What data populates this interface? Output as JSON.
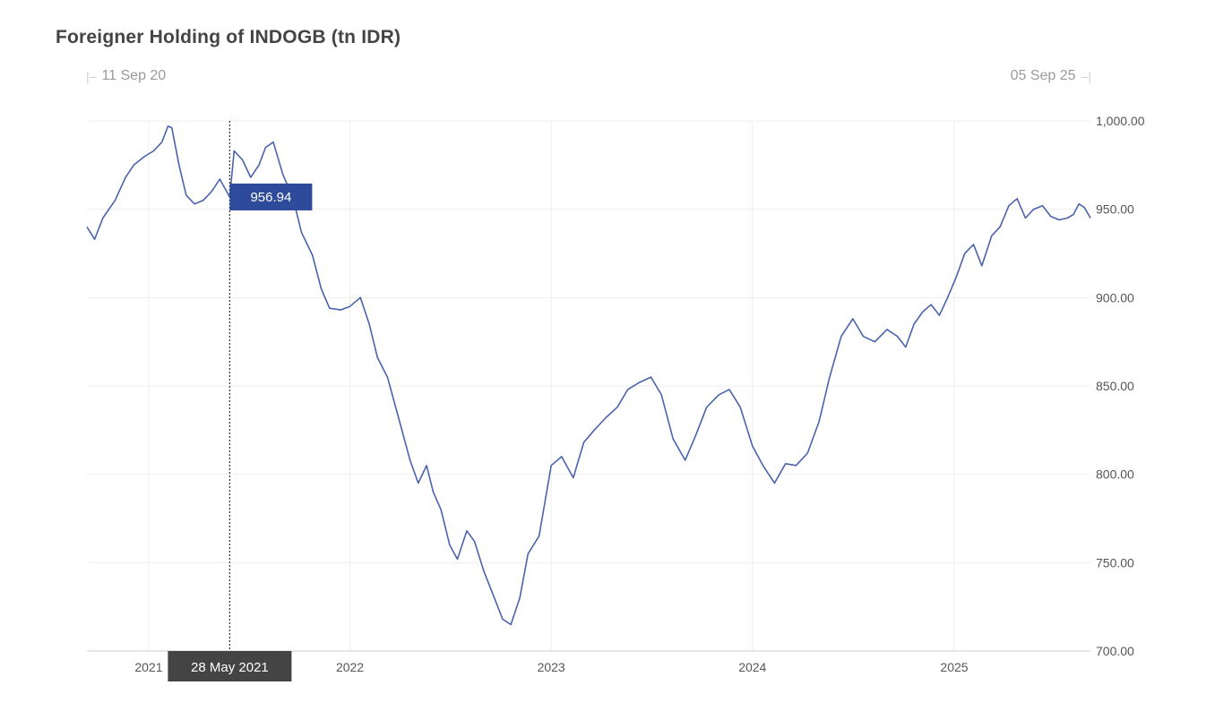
{
  "title": "Foreigner Holding of INDOGB (tn IDR)",
  "range_selector": {
    "start_label": "11 Sep 20",
    "end_label": "05 Sep 25"
  },
  "tooltip": {
    "value_label": "956.94",
    "date_label": "28 May 2021",
    "date_value": "2021-05-28"
  },
  "colors": {
    "line": "#4a63ad",
    "tooltip_value_bg": "#2d4b9a",
    "tooltip_date_bg": "#444444",
    "grid": "#eeeeee",
    "axis_text": "#555555"
  },
  "chart_data": {
    "type": "line",
    "title": "Foreigner Holding of INDOGB (tn IDR)",
    "xlabel": "",
    "ylabel": "",
    "ylim": [
      700,
      1000
    ],
    "y_ticks": [
      "1,000.00",
      "950.00",
      "900.00",
      "850.00",
      "800.00",
      "750.00",
      "700.00"
    ],
    "y_tick_values": [
      1000,
      950,
      900,
      850,
      800,
      750,
      700
    ],
    "x_range": [
      "2020-09-11",
      "2025-09-05"
    ],
    "x_ticks": [
      {
        "label": "2021",
        "date": "2021-01-01"
      },
      {
        "label": "2022",
        "date": "2022-01-01"
      },
      {
        "label": "2023",
        "date": "2023-01-01"
      },
      {
        "label": "2024",
        "date": "2024-01-01"
      },
      {
        "label": "2025",
        "date": "2025-01-01"
      }
    ],
    "grid": true,
    "y_axis_position": "right",
    "series": [
      {
        "x": [
          "2020-09-11",
          "2020-09-25",
          "2020-10-10",
          "2020-11-01",
          "2020-11-20",
          "2020-12-05",
          "2020-12-25",
          "2021-01-10",
          "2021-01-25",
          "2021-02-05",
          "2021-02-12",
          "2021-02-25",
          "2021-03-10",
          "2021-03-25",
          "2021-04-10",
          "2021-04-25",
          "2021-05-10",
          "2021-05-28",
          "2021-06-05",
          "2021-06-20",
          "2021-07-05",
          "2021-07-20",
          "2021-08-01",
          "2021-08-15",
          "2021-09-01",
          "2021-09-20",
          "2021-10-05",
          "2021-10-25",
          "2021-11-10",
          "2021-11-25",
          "2021-12-15",
          "2022-01-01",
          "2022-01-20",
          "2022-02-05",
          "2022-02-20",
          "2022-03-10",
          "2022-04-01",
          "2022-04-20",
          "2022-05-05",
          "2022-05-20",
          "2022-06-01",
          "2022-06-15",
          "2022-07-01",
          "2022-07-15",
          "2022-08-01",
          "2022-08-15",
          "2022-09-01",
          "2022-09-20",
          "2022-10-05",
          "2022-10-20",
          "2022-11-05",
          "2022-11-20",
          "2022-12-10",
          "2023-01-01",
          "2023-01-20",
          "2023-02-10",
          "2023-03-01",
          "2023-03-20",
          "2023-04-10",
          "2023-05-01",
          "2023-05-20",
          "2023-06-10",
          "2023-07-01",
          "2023-07-20",
          "2023-08-10",
          "2023-09-01",
          "2023-09-20",
          "2023-10-10",
          "2023-11-01",
          "2023-11-20",
          "2023-12-10",
          "2024-01-01",
          "2024-01-20",
          "2024-02-10",
          "2024-03-01",
          "2024-03-20",
          "2024-04-10",
          "2024-05-01",
          "2024-05-20",
          "2024-06-10",
          "2024-07-01",
          "2024-07-20",
          "2024-08-10",
          "2024-09-01",
          "2024-09-20",
          "2024-10-05",
          "2024-10-20",
          "2024-11-05",
          "2024-11-20",
          "2024-12-05",
          "2024-12-20",
          "2025-01-05",
          "2025-01-20",
          "2025-02-05",
          "2025-02-20",
          "2025-03-10",
          "2025-03-25",
          "2025-04-10",
          "2025-04-25",
          "2025-05-10",
          "2025-05-25",
          "2025-06-10",
          "2025-06-25",
          "2025-07-10",
          "2025-07-25",
          "2025-08-05",
          "2025-08-15",
          "2025-08-25",
          "2025-09-05"
        ],
        "values": [
          940,
          933,
          945,
          955,
          968,
          975,
          980,
          983,
          988,
          997,
          996,
          975,
          958,
          953,
          955,
          960,
          967,
          956.94,
          983,
          978,
          968,
          975,
          985,
          988,
          970,
          956,
          937,
          924,
          905,
          894,
          893,
          895,
          900,
          885,
          866,
          855,
          830,
          808,
          795,
          805,
          790,
          780,
          760,
          752,
          768,
          762,
          745,
          730,
          718,
          715,
          730,
          755,
          765,
          805,
          810,
          798,
          818,
          825,
          832,
          838,
          848,
          852,
          855,
          845,
          820,
          808,
          822,
          838,
          845,
          848,
          838,
          816,
          805,
          795,
          806,
          805,
          812,
          830,
          855,
          878,
          888,
          878,
          875,
          882,
          878,
          872,
          885,
          892,
          896,
          890,
          900,
          912,
          925,
          930,
          918,
          935,
          940,
          952,
          956,
          945,
          950,
          952,
          946,
          944,
          945,
          947,
          953,
          951,
          945
        ]
      }
    ]
  }
}
